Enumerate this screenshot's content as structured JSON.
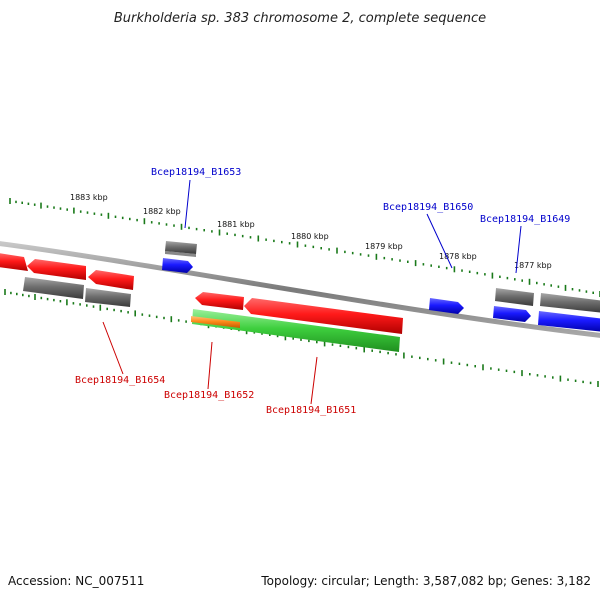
{
  "title": "Burkholderia sp. 383 chromosome 2, complete sequence",
  "footer": {
    "accession": "Accession: NC_007511",
    "topology": "Topology: circular; Length: 3,587,082 bp; Genes: 3,182"
  },
  "colors": {
    "backbone": "#8a8a8a",
    "ticks": "#1a7a1a",
    "label_forward": "#0000cc",
    "label_reverse": "#cc0000",
    "red_gene": "#ff1a1a",
    "grey_gene": "#6e6e6e",
    "blue_gene": "#1a1aff",
    "green_gene": "#3ecf3e",
    "orange_gene": "#ff8c1a"
  },
  "scale": {
    "unit": "kbp",
    "labels": [
      "1883 kbp",
      "1882 kbp",
      "1881 kbp",
      "1880 kbp",
      "1879 kbp",
      "1878 kbp",
      "1877 kbp"
    ]
  },
  "gene_labels": [
    {
      "text": "Bcep18194_B1653",
      "strand": "forward"
    },
    {
      "text": "Bcep18194_B1650",
      "strand": "forward"
    },
    {
      "text": "Bcep18194_B1649",
      "strand": "forward"
    },
    {
      "text": "Bcep18194_B1654",
      "strand": "reverse"
    },
    {
      "text": "Bcep18194_B1652",
      "strand": "reverse"
    },
    {
      "text": "Bcep18194_B1651",
      "strand": "reverse"
    }
  ]
}
